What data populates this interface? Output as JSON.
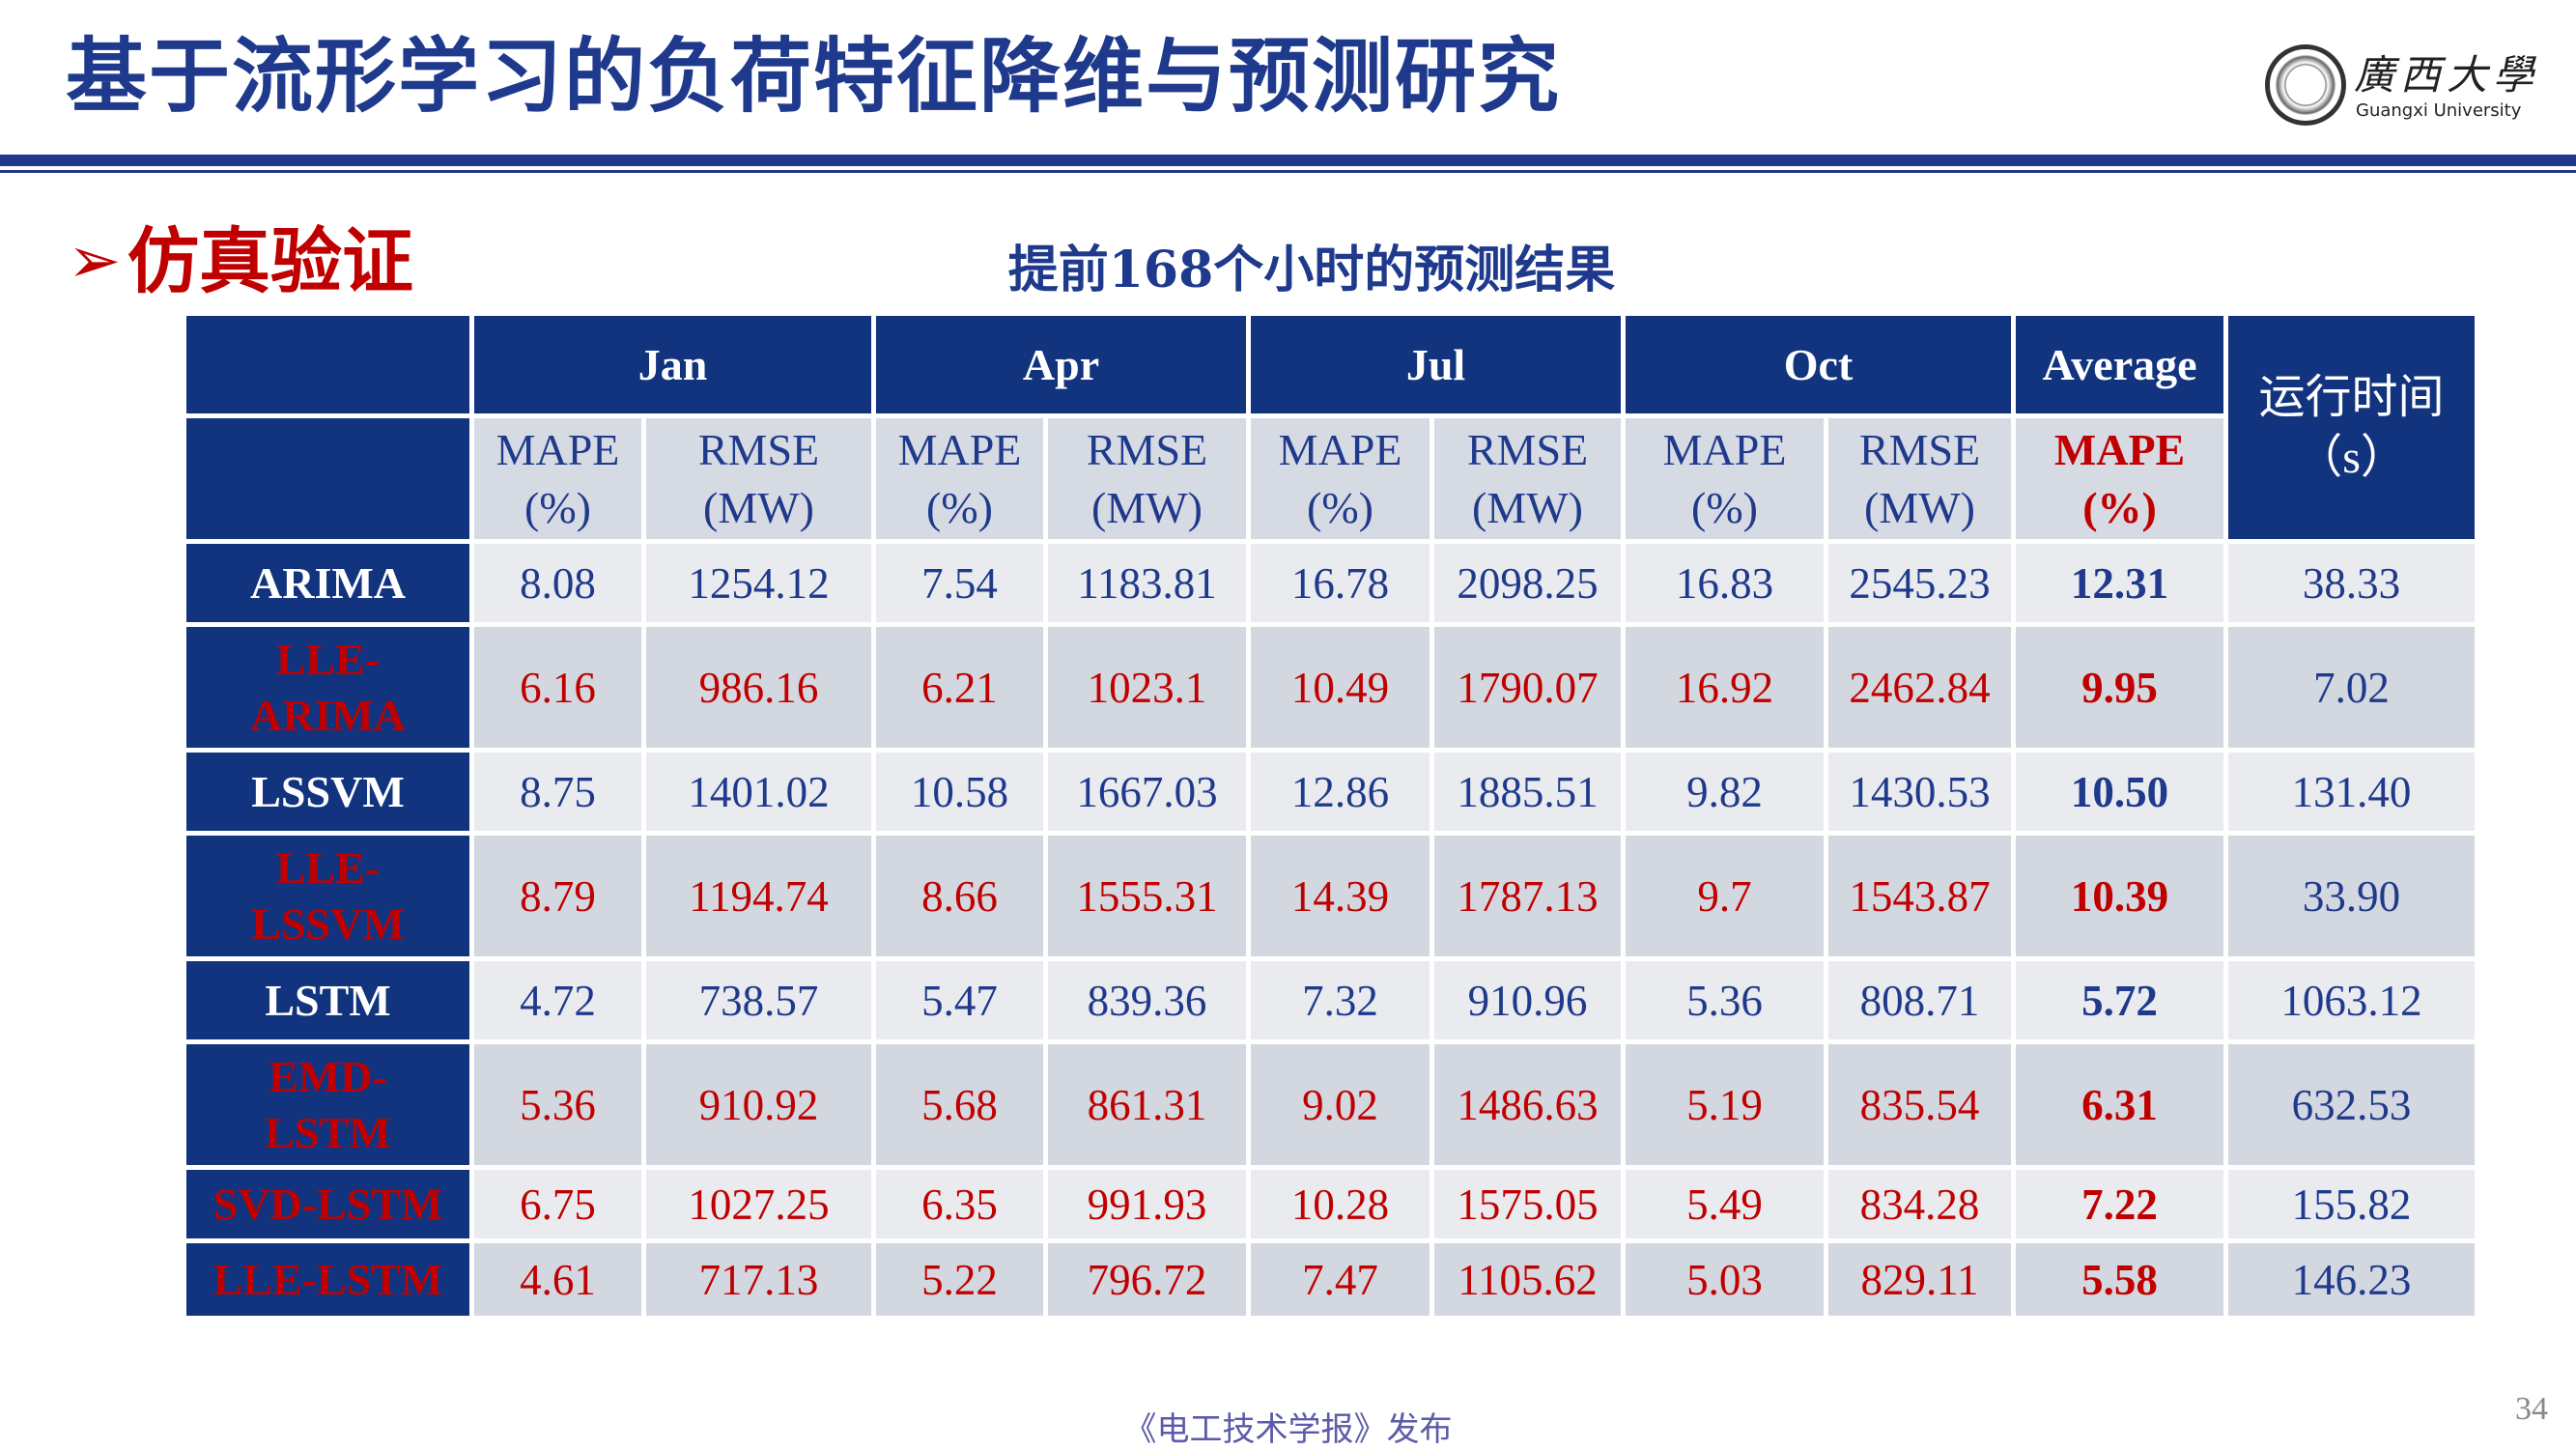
{
  "header": {
    "title": "基于流形学习的负荷特征降维与预测研究",
    "logo_cn": "廣西大學",
    "logo_en": "Guangxi University"
  },
  "section": {
    "arrow": "➢",
    "heading": "仿真验证"
  },
  "table": {
    "caption": "提前168个小时的预测结果",
    "months": [
      "Jan",
      "Apr",
      "Jul",
      "Oct"
    ],
    "average_label": "Average",
    "runtime_label": [
      "运行时间",
      "（s）"
    ],
    "mape_label": [
      "MAPE",
      "(%)"
    ],
    "rmse_label": [
      "RMSE",
      "(MW)"
    ],
    "rows": [
      {
        "model": [
          "ARIMA"
        ],
        "highlight": false,
        "values": [
          "8.08",
          "1254.12",
          "7.54",
          "1183.81",
          "16.78",
          "2098.25",
          "16.83",
          "2545.23"
        ],
        "average": "12.31",
        "runtime": "38.33"
      },
      {
        "model": [
          "LLE-",
          "ARIMA"
        ],
        "highlight": true,
        "values": [
          "6.16",
          "986.16",
          "6.21",
          "1023.1",
          "10.49",
          "1790.07",
          "16.92",
          "2462.84"
        ],
        "average": "9.95",
        "runtime": "7.02"
      },
      {
        "model": [
          "LSSVM"
        ],
        "highlight": false,
        "values": [
          "8.75",
          "1401.02",
          "10.58",
          "1667.03",
          "12.86",
          "1885.51",
          "9.82",
          "1430.53"
        ],
        "average": "10.50",
        "runtime": "131.40"
      },
      {
        "model": [
          "LLE-",
          "LSSVM"
        ],
        "highlight": true,
        "values": [
          "8.79",
          "1194.74",
          "8.66",
          "1555.31",
          "14.39",
          "1787.13",
          "9.7",
          "1543.87"
        ],
        "average": "10.39",
        "runtime": "33.90"
      },
      {
        "model": [
          "LSTM"
        ],
        "highlight": false,
        "values": [
          "4.72",
          "738.57",
          "5.47",
          "839.36",
          "7.32",
          "910.96",
          "5.36",
          "808.71"
        ],
        "average": "5.72",
        "runtime": "1063.12"
      },
      {
        "model": [
          "EMD-",
          "LSTM"
        ],
        "highlight": true,
        "values": [
          "5.36",
          "910.92",
          "5.68",
          "861.31",
          "9.02",
          "1486.63",
          "5.19",
          "835.54"
        ],
        "average": "6.31",
        "runtime": "632.53"
      },
      {
        "model": [
          "SVD-LSTM"
        ],
        "highlight": true,
        "values": [
          "6.75",
          "1027.25",
          "6.35",
          "991.93",
          "10.28",
          "1575.05",
          "5.49",
          "834.28"
        ],
        "average": "7.22",
        "runtime": "155.82"
      },
      {
        "model": [
          "LLE-LSTM"
        ],
        "highlight": true,
        "values": [
          "4.61",
          "717.13",
          "5.22",
          "796.72",
          "7.47",
          "1105.62",
          "5.03",
          "829.11"
        ],
        "average": "5.58",
        "runtime": "146.23"
      }
    ]
  },
  "footer": {
    "source": "《电工技术学报》发布",
    "page_number": "34"
  }
}
